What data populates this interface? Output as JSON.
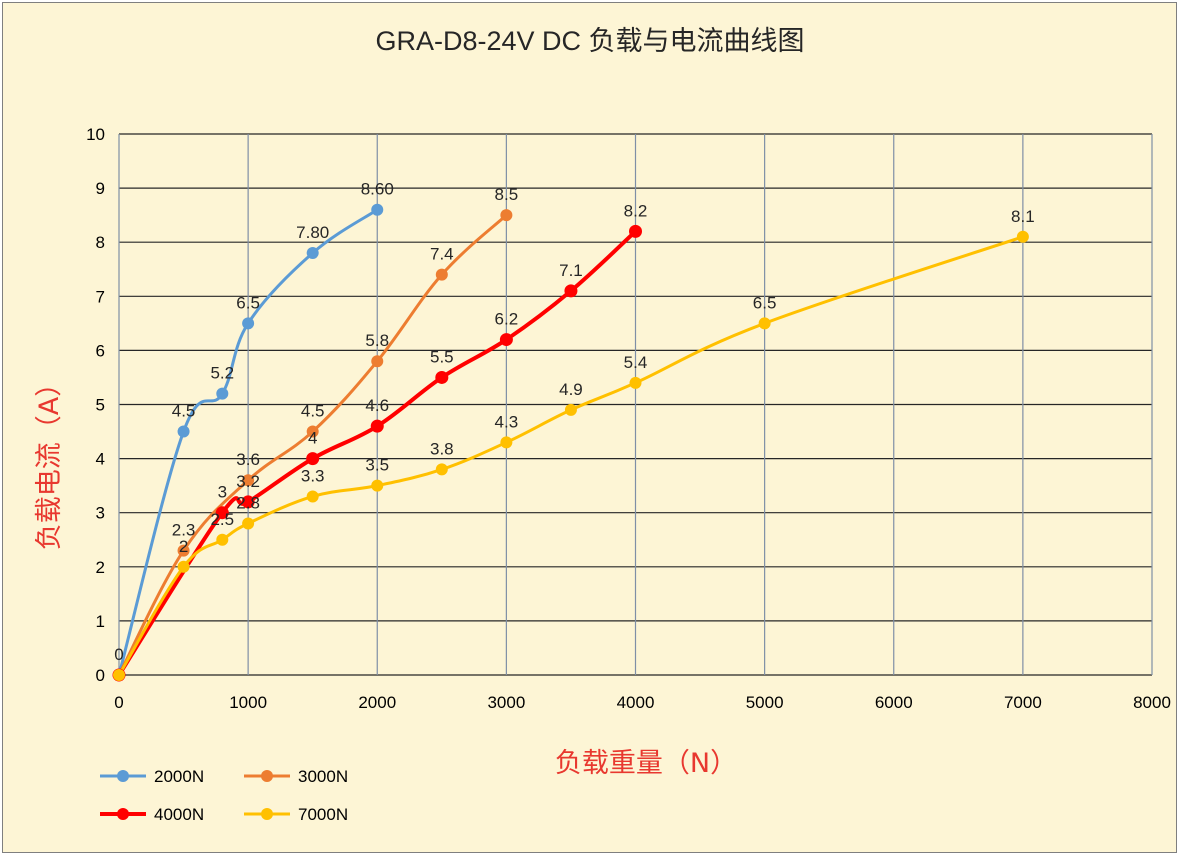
{
  "chart_data": {
    "type": "line",
    "title": "GRA-D8-24V DC 负载与电流曲线图",
    "xlabel": "负载重量（N）",
    "ylabel": "负载电流（A）",
    "xlim": [
      0,
      8000
    ],
    "ylim": [
      0,
      10
    ],
    "x_ticks": [
      "0",
      "1000",
      "2000",
      "3000",
      "4000",
      "5000",
      "6000",
      "7000",
      "8000"
    ],
    "y_ticks": [
      "0",
      "1",
      "2",
      "3",
      "4",
      "5",
      "6",
      "7",
      "8",
      "9",
      "10"
    ],
    "grid": true,
    "legend_position": "bottom-left",
    "series": [
      {
        "name": "2000N",
        "color": "#5b9bd5",
        "x": [
          0,
          500,
          800,
          1000,
          1500,
          2000
        ],
        "y": [
          0,
          4.5,
          5.2,
          6.5,
          7.8,
          8.6
        ],
        "labels": [
          "0",
          "4.5",
          "5.2",
          "6.5",
          "7.80",
          "8.60"
        ]
      },
      {
        "name": "3000N",
        "color": "#ed7d31",
        "x": [
          0,
          500,
          1000,
          1500,
          2000,
          2500,
          3000
        ],
        "y": [
          0,
          2.3,
          3.6,
          4.5,
          5.8,
          7.4,
          8.5
        ],
        "labels": [
          "0",
          "2.3",
          "3.6",
          "4.5",
          "5.8",
          "7.4",
          "8.5"
        ]
      },
      {
        "name": "4000N",
        "color": "#ff0000",
        "x": [
          0,
          800,
          1000,
          1500,
          2000,
          2500,
          3000,
          3500,
          4000
        ],
        "y": [
          0,
          3,
          3.2,
          4,
          4.6,
          5.5,
          6.2,
          7.1,
          8.2
        ],
        "labels": [
          "0",
          "3",
          "3.2",
          "4",
          "4.6",
          "5.5",
          "6.2",
          "7.1",
          "8.2"
        ]
      },
      {
        "name": "7000N",
        "color": "#ffc000",
        "x": [
          0,
          500,
          800,
          1000,
          1500,
          2000,
          2500,
          3000,
          3500,
          4000,
          5000,
          7000
        ],
        "y": [
          0,
          2,
          2.5,
          2.8,
          3.3,
          3.5,
          3.8,
          4.3,
          4.9,
          5.4,
          6.5,
          8.1
        ],
        "labels": [
          "0",
          "2",
          "2.5",
          "2.8",
          "3.3",
          "3.5",
          "3.8",
          "4.3",
          "4.9",
          "5.4",
          "6.5",
          "8.1"
        ]
      }
    ]
  }
}
